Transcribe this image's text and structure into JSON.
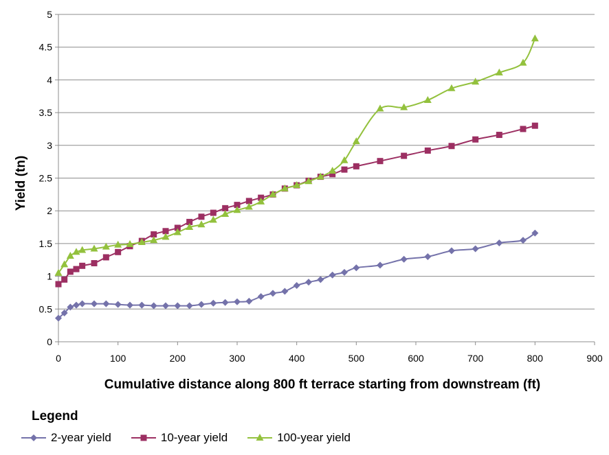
{
  "chart_data": {
    "type": "line",
    "title": "",
    "xlabel": "Cumulative distance along 800 ft terrace starting from downstream (ft)",
    "ylabel": "Yield (tn)",
    "xlim": [
      0,
      900
    ],
    "ylim": [
      0,
      5
    ],
    "x_ticks": [
      "0",
      "100",
      "200",
      "300",
      "400",
      "500",
      "600",
      "700",
      "800",
      "900"
    ],
    "y_ticks": [
      "0",
      "0.5",
      "1",
      "1.5",
      "2",
      "2.5",
      "3",
      "3.5",
      "4",
      "4.5",
      "5"
    ],
    "grid": "horizontal",
    "legend_title": "Legend",
    "legend_position": "bottom",
    "series": [
      {
        "name": "2-year yield",
        "color": "#7472AA",
        "marker": "diamond",
        "x": [
          0,
          10,
          20,
          30,
          40,
          60,
          80,
          100,
          120,
          140,
          160,
          180,
          200,
          220,
          240,
          260,
          280,
          300,
          320,
          340,
          360,
          380,
          400,
          420,
          440,
          460,
          480,
          500,
          540,
          580,
          620,
          660,
          700,
          740,
          780,
          800
        ],
        "y": [
          0.36,
          0.44,
          0.53,
          0.56,
          0.58,
          0.58,
          0.58,
          0.57,
          0.56,
          0.56,
          0.55,
          0.55,
          0.55,
          0.55,
          0.57,
          0.59,
          0.6,
          0.61,
          0.62,
          0.69,
          0.74,
          0.77,
          0.86,
          0.91,
          0.95,
          1.02,
          1.06,
          1.13,
          1.17,
          1.26,
          1.3,
          1.39,
          1.42,
          1.51,
          1.55,
          1.66
        ]
      },
      {
        "name": "10-year yield",
        "color": "#9C2F62",
        "marker": "square",
        "x": [
          0,
          10,
          20,
          30,
          40,
          60,
          80,
          100,
          120,
          140,
          160,
          180,
          200,
          220,
          240,
          260,
          280,
          300,
          320,
          340,
          360,
          380,
          400,
          420,
          440,
          460,
          480,
          500,
          540,
          580,
          620,
          660,
          700,
          740,
          780,
          800
        ],
        "y": [
          0.88,
          0.95,
          1.07,
          1.11,
          1.16,
          1.2,
          1.29,
          1.37,
          1.46,
          1.54,
          1.64,
          1.69,
          1.74,
          1.83,
          1.91,
          1.97,
          2.04,
          2.09,
          2.15,
          2.2,
          2.25,
          2.34,
          2.39,
          2.46,
          2.52,
          2.56,
          2.63,
          2.68,
          2.76,
          2.84,
          2.92,
          2.99,
          3.09,
          3.16,
          3.25,
          3.3
        ]
      },
      {
        "name": "100-year yield",
        "color": "#93C13D",
        "marker": "triangle",
        "x": [
          0,
          10,
          20,
          30,
          40,
          60,
          80,
          100,
          120,
          140,
          160,
          180,
          200,
          220,
          240,
          260,
          280,
          300,
          320,
          340,
          360,
          380,
          400,
          420,
          440,
          460,
          480,
          500,
          540,
          580,
          620,
          660,
          700,
          740,
          780,
          800
        ],
        "y": [
          1.05,
          1.18,
          1.31,
          1.37,
          1.4,
          1.42,
          1.45,
          1.48,
          1.49,
          1.52,
          1.55,
          1.6,
          1.67,
          1.75,
          1.79,
          1.86,
          1.95,
          2.01,
          2.06,
          2.14,
          2.25,
          2.34,
          2.39,
          2.45,
          2.52,
          2.61,
          2.77,
          3.06,
          3.56,
          3.58,
          3.69,
          3.87,
          3.97,
          4.11,
          4.26,
          4.63
        ]
      }
    ]
  }
}
